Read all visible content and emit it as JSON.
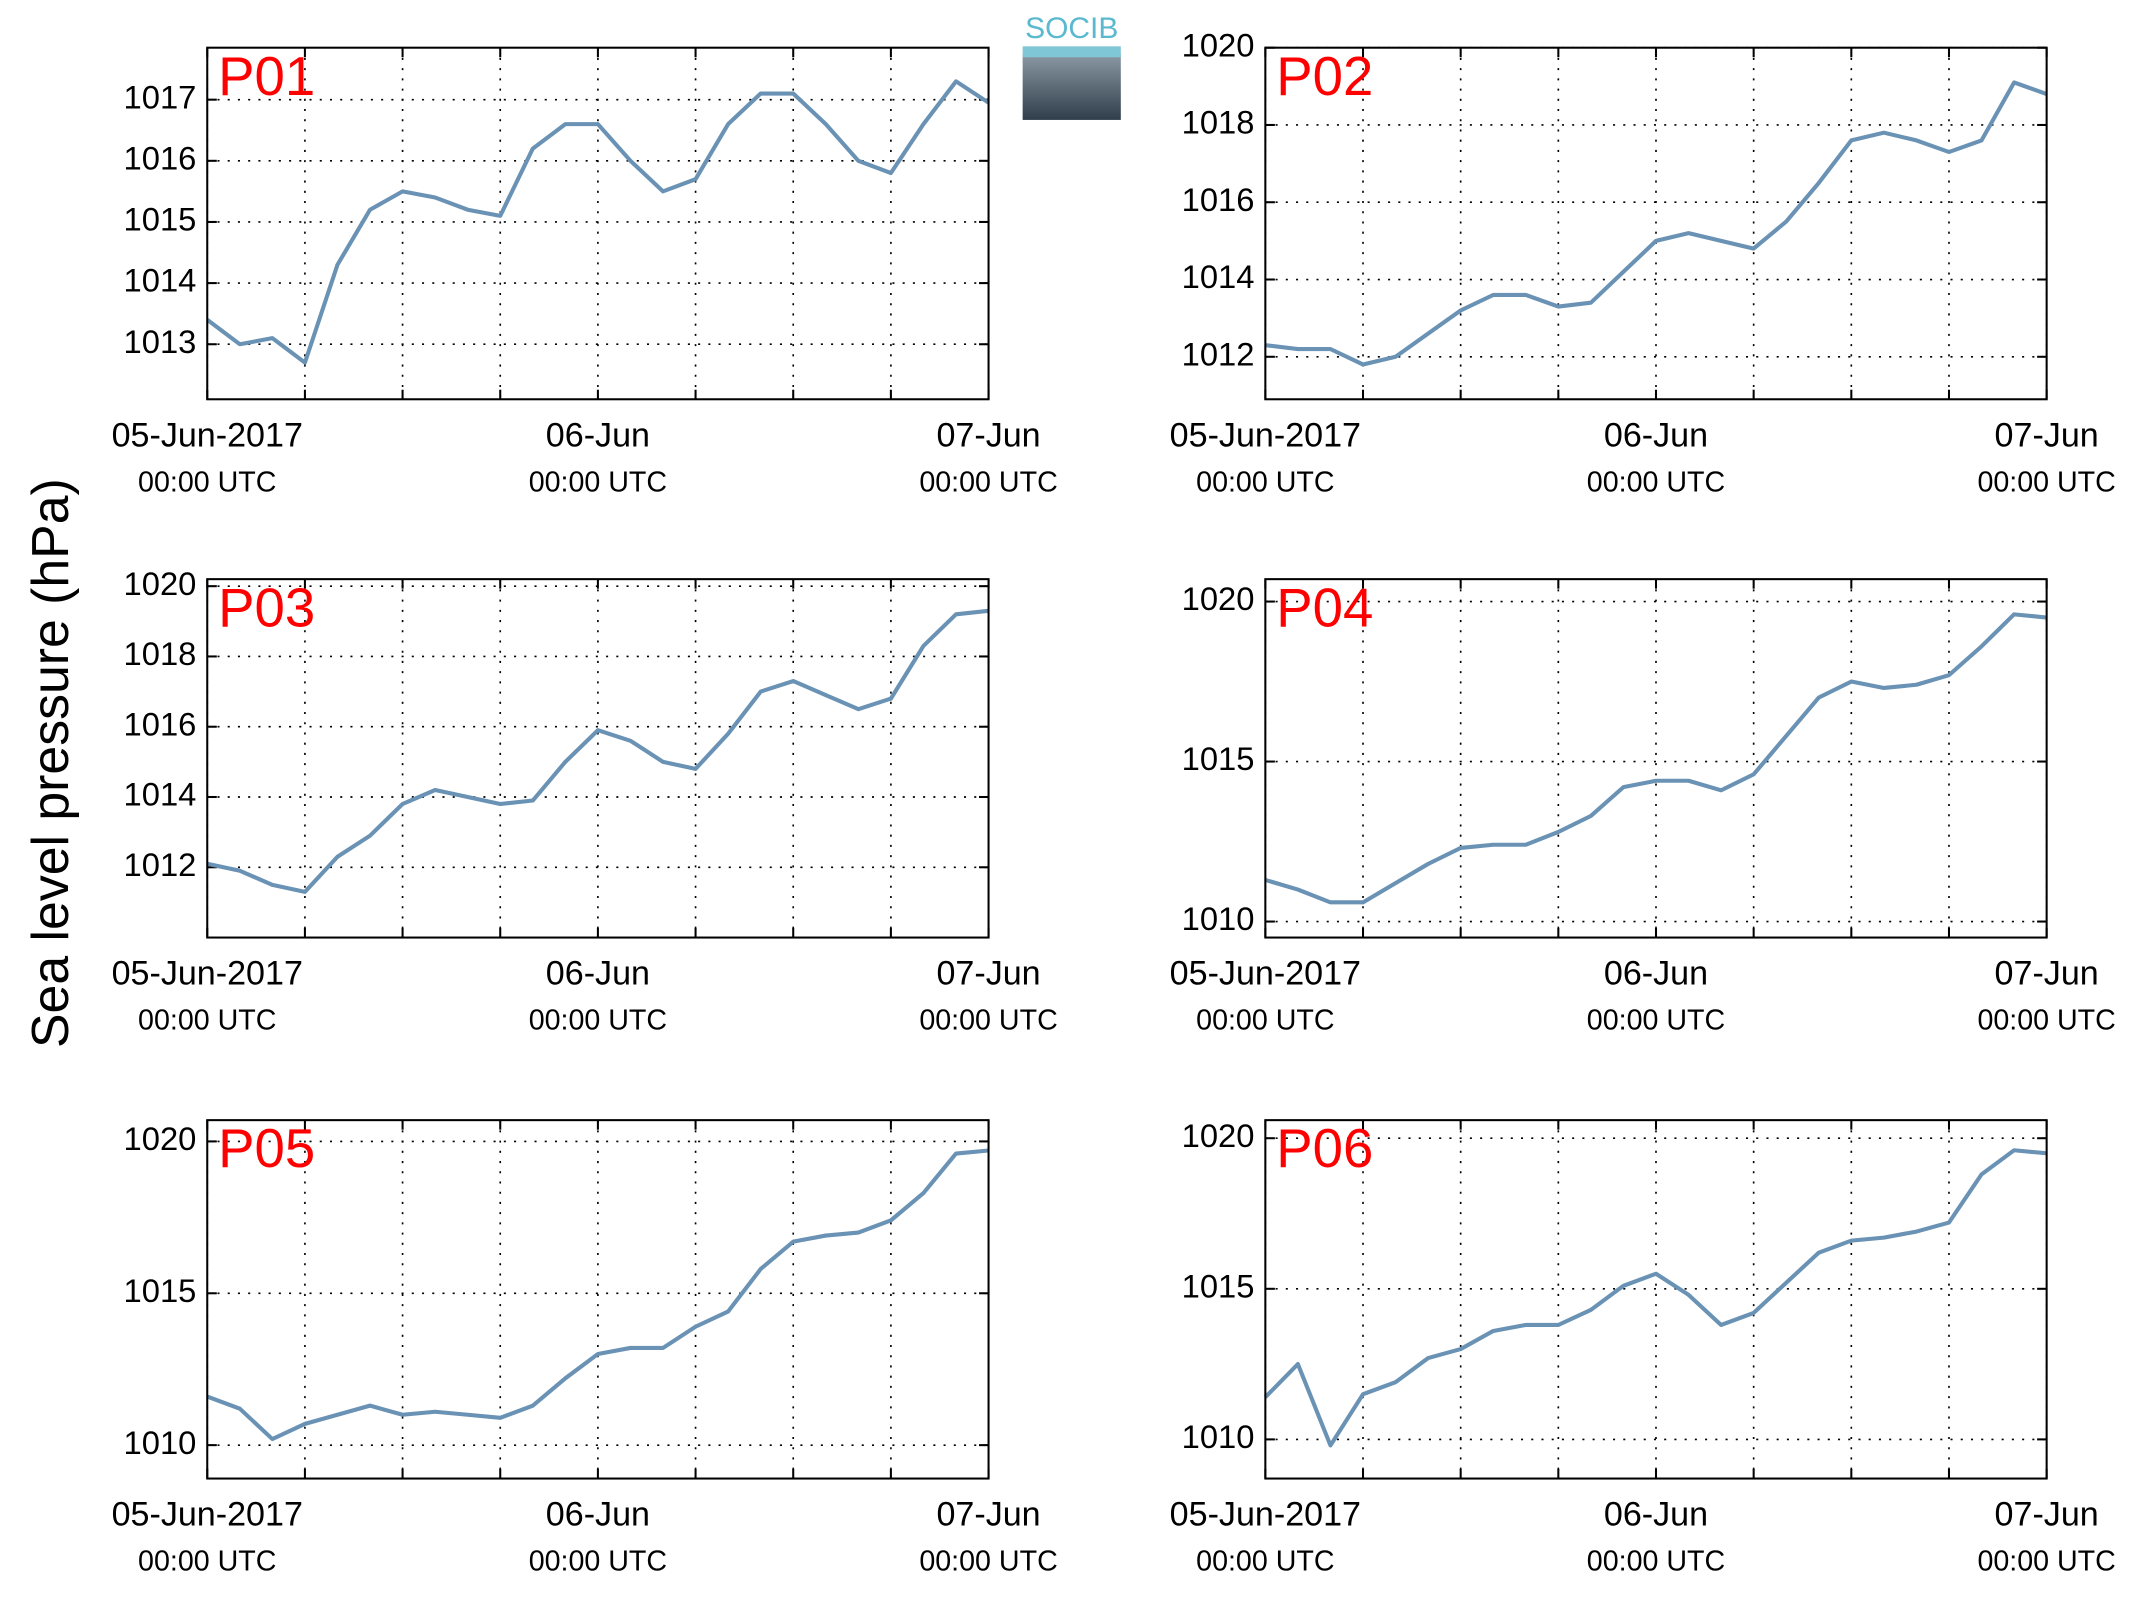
{
  "ylabel": "Sea level pressure (hPa)",
  "logo": "SOCIB",
  "chart_data": [
    {
      "type": "line",
      "title": "P01",
      "color": "#6a92b4",
      "grid": true,
      "x": [
        0,
        2,
        4,
        6,
        8,
        10,
        12,
        14,
        16,
        18,
        20,
        22,
        24,
        26,
        28,
        30,
        32,
        34,
        36,
        38,
        40,
        42,
        44,
        46,
        48
      ],
      "values": [
        1013.4,
        1013.0,
        1013.1,
        1012.7,
        1014.3,
        1015.2,
        1015.5,
        1015.4,
        1015.2,
        1015.1,
        1016.2,
        1016.6,
        1016.6,
        1016.0,
        1015.5,
        1015.7,
        1016.6,
        1017.1,
        1017.1,
        1016.6,
        1016.0,
        1015.8,
        1016.6,
        1017.3,
        1016.95
      ],
      "xlim": [
        0,
        48
      ],
      "xticks": [
        {
          "value": 0,
          "label": [
            "05-Jun-2017",
            "00:00 UTC"
          ]
        },
        {
          "value": 24,
          "label": [
            "06-Jun",
            "00:00 UTC"
          ]
        },
        {
          "value": 48,
          "label": [
            "07-Jun",
            "00:00 UTC"
          ]
        }
      ],
      "xgrid": [
        6,
        12,
        18,
        30,
        36,
        42
      ],
      "ylim": [
        1012.1,
        1017.85
      ],
      "yticks": [
        1013,
        1014,
        1015,
        1016,
        1017
      ]
    },
    {
      "type": "line",
      "title": "P02",
      "color": "#6a92b4",
      "grid": true,
      "x": [
        0,
        2,
        4,
        6,
        8,
        10,
        12,
        14,
        16,
        18,
        20,
        22,
        24,
        26,
        28,
        30,
        32,
        34,
        36,
        38,
        40,
        42,
        44,
        46,
        48
      ],
      "values": [
        1012.3,
        1012.2,
        1012.2,
        1011.8,
        1012.0,
        1012.6,
        1013.2,
        1013.6,
        1013.6,
        1013.3,
        1013.4,
        1014.2,
        1015.0,
        1015.2,
        1015.0,
        1014.8,
        1015.5,
        1016.5,
        1017.6,
        1017.8,
        1017.6,
        1017.3,
        1017.6,
        1019.1,
        1018.8
      ],
      "xlim": [
        0,
        48
      ],
      "xticks": [
        {
          "value": 0,
          "label": [
            "05-Jun-2017",
            "00:00 UTC"
          ]
        },
        {
          "value": 24,
          "label": [
            "06-Jun",
            "00:00 UTC"
          ]
        },
        {
          "value": 48,
          "label": [
            "07-Jun",
            "00:00 UTC"
          ]
        }
      ],
      "xgrid": [
        6,
        12,
        18,
        30,
        36,
        42
      ],
      "ylim": [
        1010.9,
        1020
      ],
      "yticks": [
        1012,
        1014,
        1016,
        1018,
        1020
      ]
    },
    {
      "type": "line",
      "title": "P03",
      "color": "#6a92b4",
      "grid": true,
      "x": [
        0,
        2,
        4,
        6,
        8,
        10,
        12,
        14,
        16,
        18,
        20,
        22,
        24,
        26,
        28,
        30,
        32,
        34,
        36,
        38,
        40,
        42,
        44,
        46,
        48
      ],
      "values": [
        1012.1,
        1011.9,
        1011.5,
        1011.3,
        1012.3,
        1012.9,
        1013.8,
        1014.2,
        1014.0,
        1013.8,
        1013.9,
        1015.0,
        1015.9,
        1015.6,
        1015.0,
        1014.8,
        1015.8,
        1017.0,
        1017.3,
        1016.9,
        1016.5,
        1016.8,
        1018.3,
        1019.2,
        1019.3
      ],
      "xlim": [
        0,
        48
      ],
      "xticks": [
        {
          "value": 0,
          "label": [
            "05-Jun-2017",
            "00:00 UTC"
          ]
        },
        {
          "value": 24,
          "label": [
            "06-Jun",
            "00:00 UTC"
          ]
        },
        {
          "value": 48,
          "label": [
            "07-Jun",
            "00:00 UTC"
          ]
        }
      ],
      "xgrid": [
        6,
        12,
        18,
        30,
        36,
        42
      ],
      "ylim": [
        1010,
        1020.2
      ],
      "yticks": [
        1012,
        1014,
        1016,
        1018,
        1020
      ]
    },
    {
      "type": "line",
      "title": "P04",
      "color": "#6a92b4",
      "grid": true,
      "x": [
        0,
        2,
        4,
        6,
        8,
        10,
        12,
        14,
        16,
        18,
        20,
        22,
        24,
        26,
        28,
        30,
        32,
        34,
        36,
        38,
        40,
        42,
        44,
        46,
        48
      ],
      "values": [
        1011.3,
        1011.0,
        1010.6,
        1010.6,
        1011.2,
        1011.8,
        1012.3,
        1012.4,
        1012.4,
        1012.8,
        1013.3,
        1014.2,
        1014.4,
        1014.4,
        1014.1,
        1014.6,
        1015.8,
        1017.0,
        1017.5,
        1017.3,
        1017.4,
        1017.7,
        1018.6,
        1019.6,
        1019.5
      ],
      "xlim": [
        0,
        48
      ],
      "xticks": [
        {
          "value": 0,
          "label": [
            "05-Jun-2017",
            "00:00 UTC"
          ]
        },
        {
          "value": 24,
          "label": [
            "06-Jun",
            "00:00 UTC"
          ]
        },
        {
          "value": 48,
          "label": [
            "07-Jun",
            "00:00 UTC"
          ]
        }
      ],
      "xgrid": [
        6,
        12,
        18,
        30,
        36,
        42
      ],
      "ylim": [
        1009.5,
        1020.7
      ],
      "yticks": [
        1010,
        1015,
        1020
      ]
    },
    {
      "type": "line",
      "title": "P05",
      "color": "#6a92b4",
      "grid": true,
      "x": [
        0,
        2,
        4,
        6,
        8,
        10,
        12,
        14,
        16,
        18,
        20,
        22,
        24,
        26,
        28,
        30,
        32,
        34,
        36,
        38,
        40,
        42,
        44,
        46,
        48
      ],
      "values": [
        1011.6,
        1011.2,
        1010.2,
        1010.7,
        1011.0,
        1011.3,
        1011.0,
        1011.1,
        1011.0,
        1010.9,
        1011.3,
        1012.2,
        1013.0,
        1013.2,
        1013.2,
        1013.9,
        1014.4,
        1015.8,
        1016.7,
        1016.9,
        1017.0,
        1017.4,
        1018.3,
        1019.6,
        1019.7
      ],
      "xlim": [
        0,
        48
      ],
      "xticks": [
        {
          "value": 0,
          "label": [
            "05-Jun-2017",
            "00:00 UTC"
          ]
        },
        {
          "value": 24,
          "label": [
            "06-Jun",
            "00:00 UTC"
          ]
        },
        {
          "value": 48,
          "label": [
            "07-Jun",
            "00:00 UTC"
          ]
        }
      ],
      "xgrid": [
        6,
        12,
        18,
        30,
        36,
        42
      ],
      "ylim": [
        1008.9,
        1020.7
      ],
      "yticks": [
        1010,
        1015,
        1020
      ]
    },
    {
      "type": "line",
      "title": "P06",
      "color": "#6a92b4",
      "grid": true,
      "x": [
        0,
        2,
        4,
        6,
        8,
        10,
        12,
        14,
        16,
        18,
        20,
        22,
        24,
        26,
        28,
        30,
        32,
        34,
        36,
        38,
        40,
        42,
        44,
        46,
        48
      ],
      "values": [
        1011.4,
        1012.5,
        1009.8,
        1011.5,
        1011.9,
        1012.7,
        1013.0,
        1013.6,
        1013.8,
        1013.8,
        1014.3,
        1015.1,
        1015.5,
        1014.8,
        1013.8,
        1014.2,
        1015.2,
        1016.2,
        1016.6,
        1016.7,
        1016.9,
        1017.2,
        1018.8,
        1019.6,
        1019.5
      ],
      "xlim": [
        0,
        48
      ],
      "xticks": [
        {
          "value": 0,
          "label": [
            "05-Jun-2017",
            "00:00 UTC"
          ]
        },
        {
          "value": 24,
          "label": [
            "06-Jun",
            "00:00 UTC"
          ]
        },
        {
          "value": 48,
          "label": [
            "07-Jun",
            "00:00 UTC"
          ]
        }
      ],
      "xgrid": [
        6,
        12,
        18,
        30,
        36,
        42
      ],
      "ylim": [
        1008.7,
        1020.6
      ],
      "yticks": [
        1010,
        1015,
        1020
      ]
    }
  ]
}
